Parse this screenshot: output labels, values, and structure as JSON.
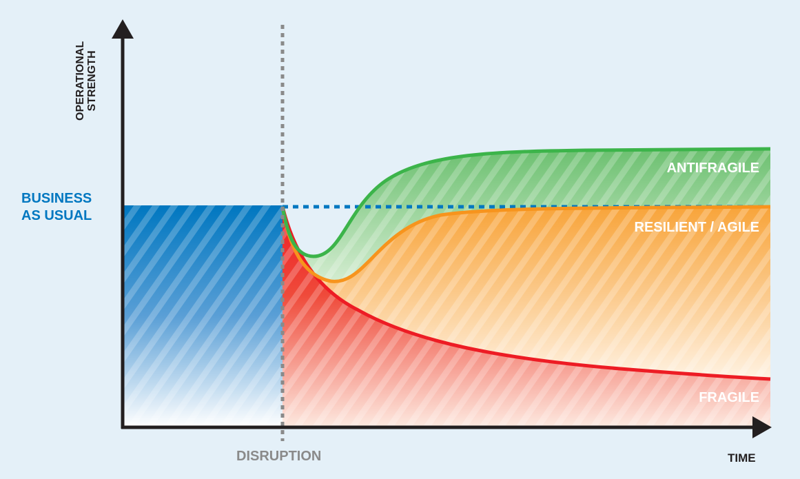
{
  "y_axis_label": [
    "OPERATIONAL",
    "STRENGTH"
  ],
  "x_axis_label": "TIME",
  "baseline_label": [
    "BUSINESS",
    "AS USUAL"
  ],
  "event_label": "DISRUPTION",
  "series": [
    {
      "name": "ANTIFRAGILE",
      "color": "#3cb44a"
    },
    {
      "name": "RESILIENT / AGILE",
      "color": "#f7941d"
    },
    {
      "name": "FRAGILE",
      "color": "#ed1c24"
    }
  ],
  "colors": {
    "background": "#e4f0f8",
    "business_as_usual": "#0077c0",
    "disruption_line": "#8a8a8a",
    "axis": "#231f20"
  }
}
